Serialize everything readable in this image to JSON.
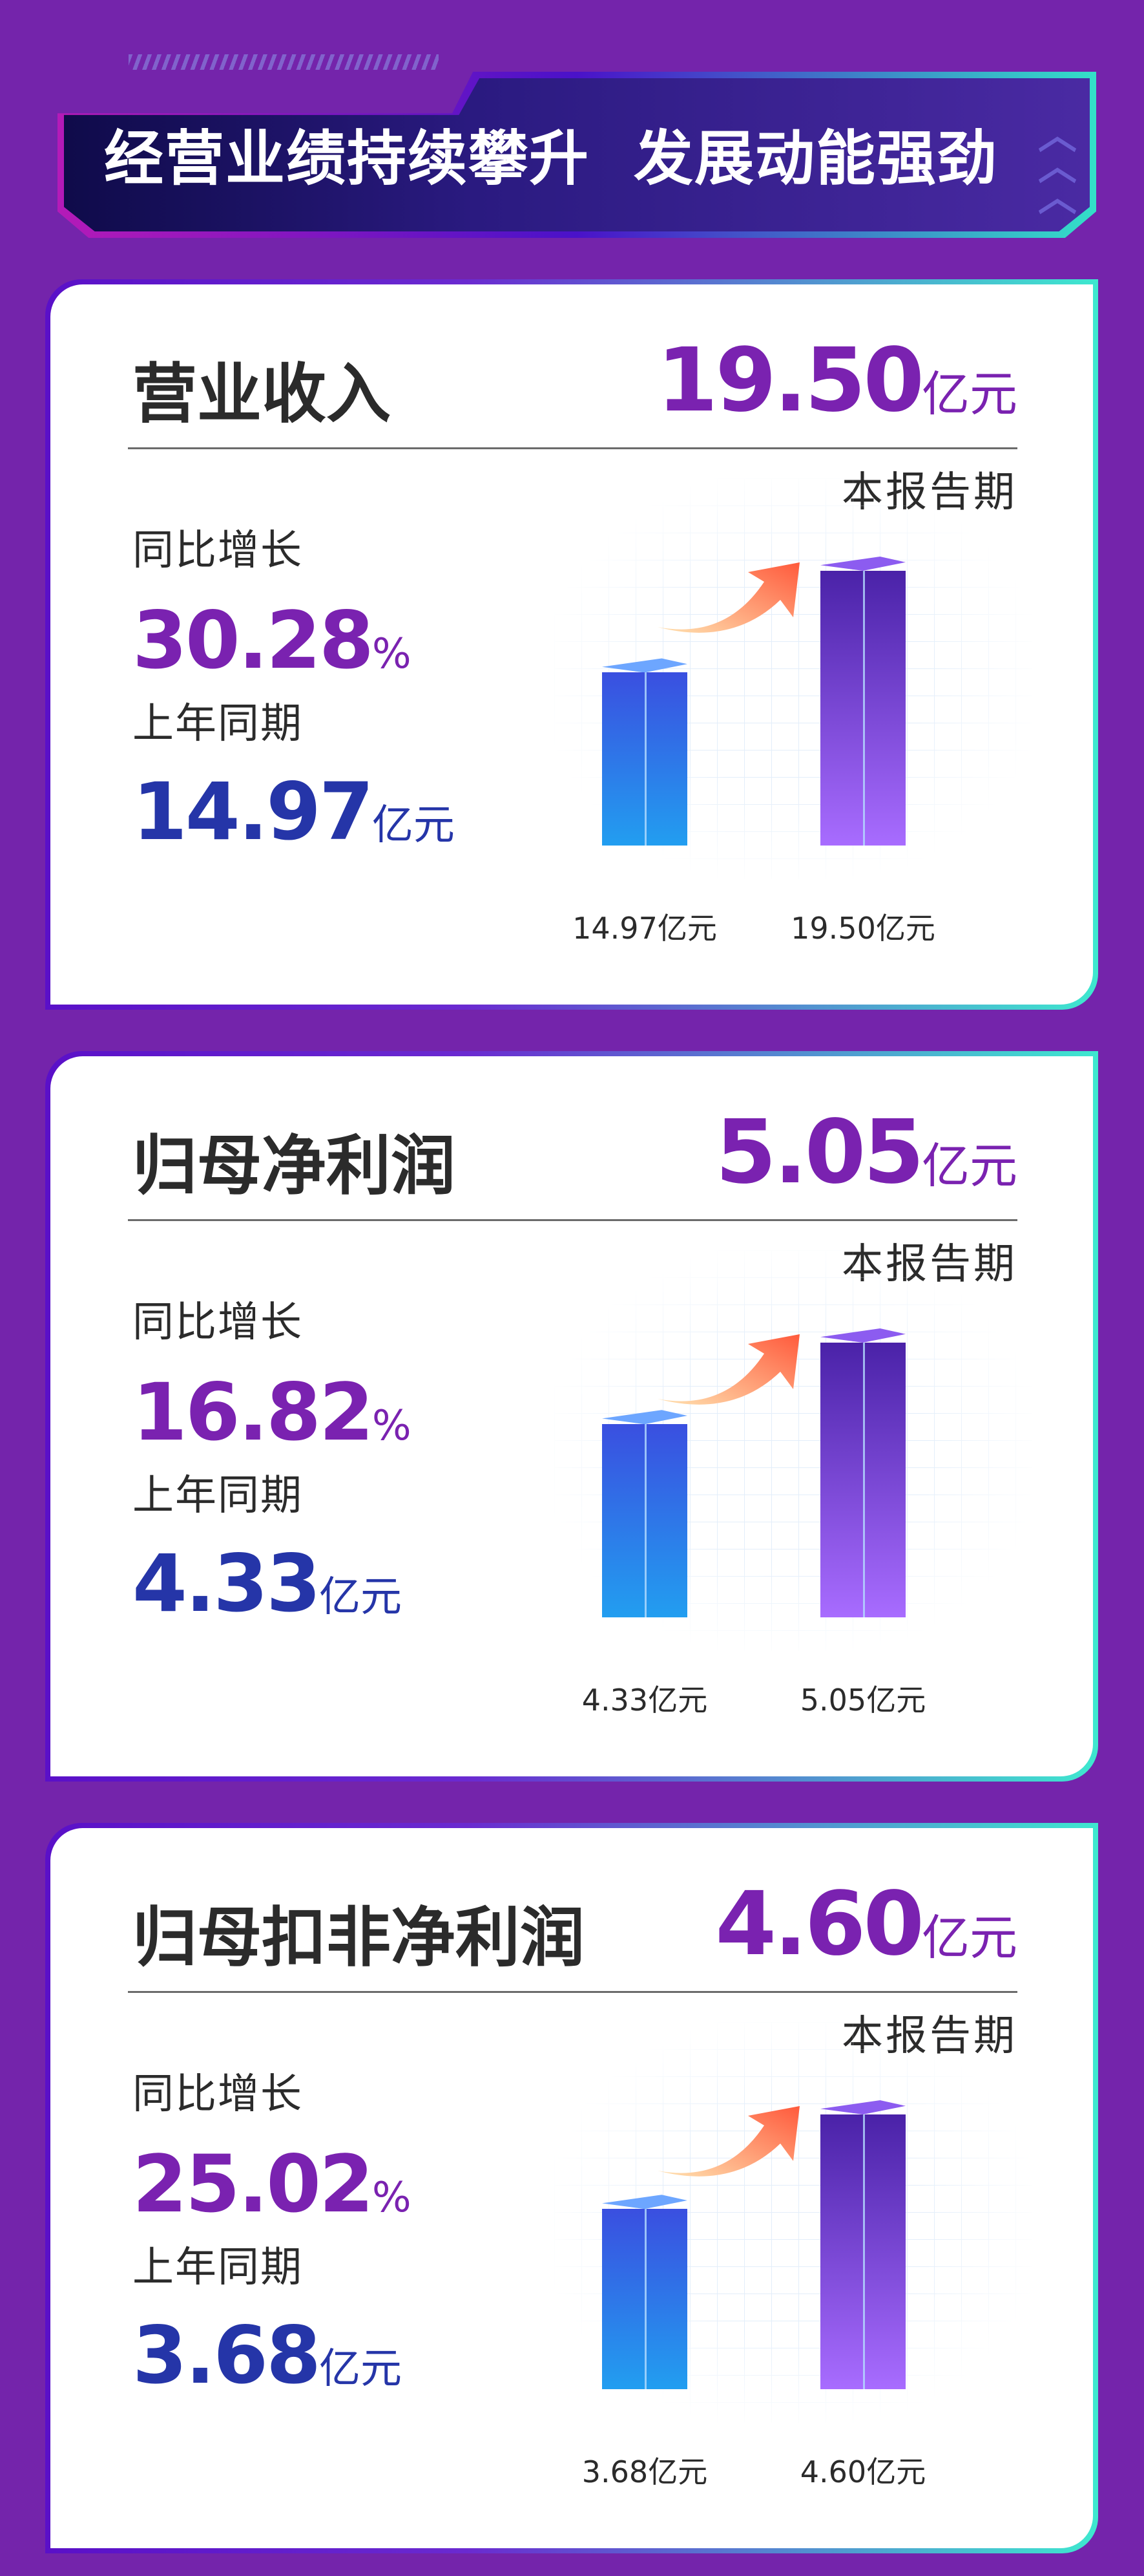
{
  "header": {
    "title": "经营业绩持续攀升  发展动能强劲"
  },
  "labels": {
    "unit": "亿元",
    "period": "本报告期",
    "yoy": "同比增长",
    "prev": "上年同期",
    "pct": "%"
  },
  "colors": {
    "background": "#7424ab",
    "accent_purple": "#7a22b0",
    "accent_blue": "#2535a8"
  },
  "cards": [
    {
      "title": "营业收入",
      "value": "19.50",
      "yoy": "30.28",
      "prev": "14.97"
    },
    {
      "title": "归母净利润",
      "value": "5.05",
      "yoy": "16.82",
      "prev": "4.33"
    },
    {
      "title": "归母扣非净利润",
      "value": "4.60",
      "yoy": "25.02",
      "prev": "3.68"
    }
  ],
  "chart_data": [
    {
      "type": "bar",
      "title": "营业收入",
      "categories": [
        "上年同期",
        "本报告期"
      ],
      "values": [
        14.97,
        19.5
      ],
      "data_labels": [
        "14.97亿元",
        "19.50亿元"
      ]
    },
    {
      "type": "bar",
      "title": "归母净利润",
      "categories": [
        "上年同期",
        "本报告期"
      ],
      "values": [
        4.33,
        5.05
      ],
      "data_labels": [
        "4.33亿元",
        "5.05亿元"
      ]
    },
    {
      "type": "bar",
      "title": "归母扣非净利润",
      "categories": [
        "上年同期",
        "本报告期"
      ],
      "values": [
        3.68,
        4.6
      ],
      "data_labels": [
        "3.68亿元",
        "4.60亿元"
      ]
    }
  ]
}
